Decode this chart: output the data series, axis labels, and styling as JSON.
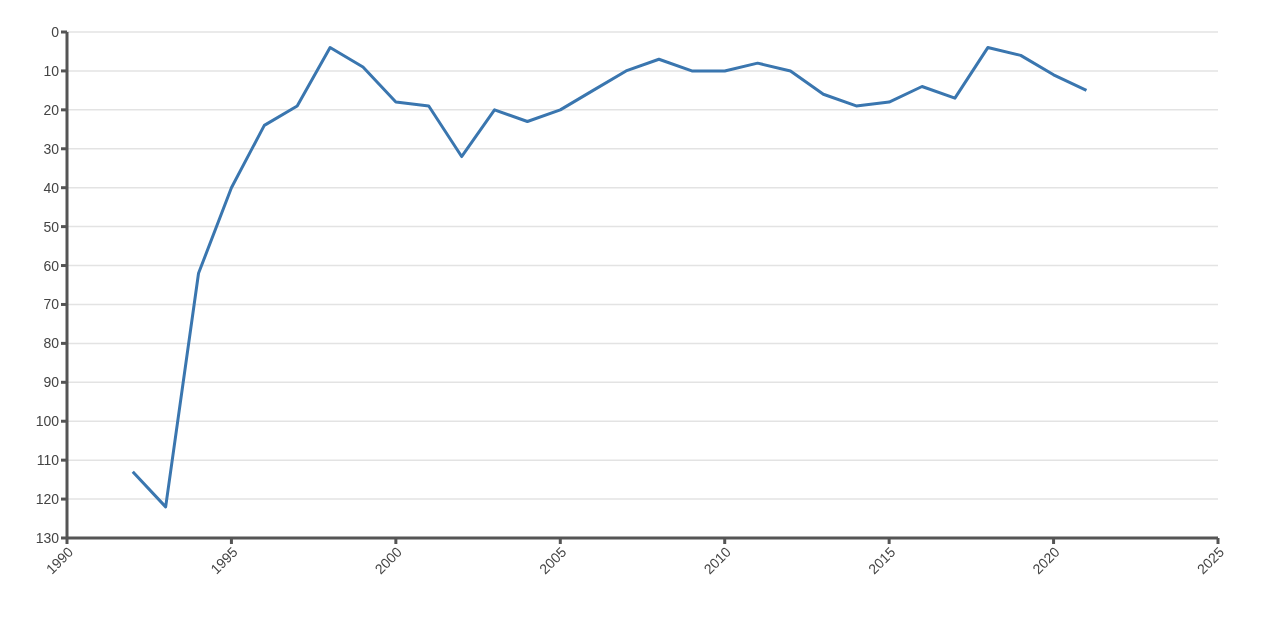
{
  "chart_data": {
    "type": "line",
    "x": [
      1992,
      1993,
      1994,
      1995,
      1996,
      1997,
      1998,
      1999,
      2000,
      2001,
      2002,
      2003,
      2004,
      2005,
      2006,
      2007,
      2008,
      2009,
      2010,
      2011,
      2012,
      2013,
      2014,
      2015,
      2016,
      2017,
      2018,
      2019,
      2020,
      2021
    ],
    "series": [
      {
        "color": "#3a76af",
        "values": [
          113,
          122,
          62,
          40,
          24,
          19,
          4,
          9,
          18,
          19,
          32,
          20,
          23,
          20,
          15,
          10,
          7,
          10,
          10,
          8,
          10,
          16,
          19,
          18,
          14,
          17,
          4,
          6,
          11,
          15
        ]
      }
    ],
    "xlim": [
      1990,
      2025
    ],
    "xticks": [
      1990,
      1995,
      2000,
      2005,
      2010,
      2015,
      2020,
      2025
    ],
    "ylim": [
      130,
      0
    ],
    "yticks": [
      0,
      10,
      20,
      30,
      40,
      50,
      60,
      70,
      80,
      90,
      100,
      110,
      120,
      130
    ],
    "grid": "y",
    "marker": "none",
    "line_style": "solid",
    "legend": false
  }
}
